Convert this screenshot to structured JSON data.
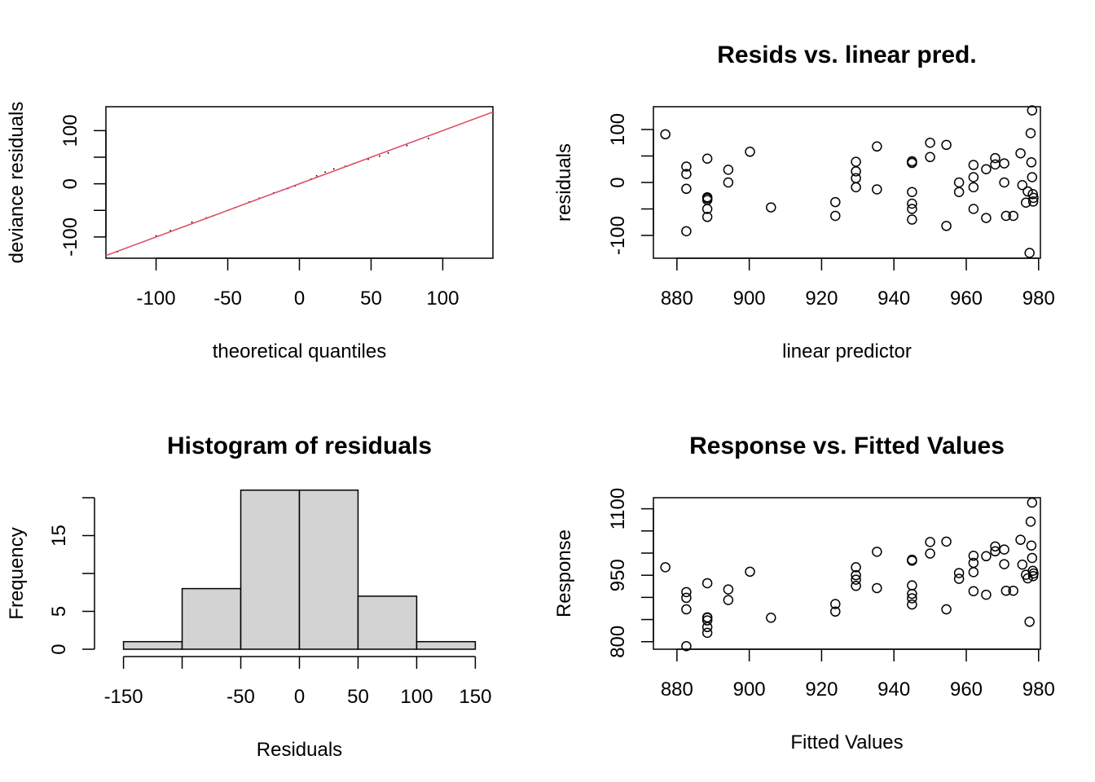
{
  "colors": {
    "reference_line": "#DF536B",
    "hist_fill": "#D3D3D3",
    "ink": "#000000"
  },
  "chart_data": [
    {
      "type": "line",
      "title": "",
      "xlabel": "theoretical quantiles",
      "ylabel": "deviance residuals",
      "xlim": [
        -135,
        135
      ],
      "ylim": [
        -140,
        145
      ],
      "xticks": [
        -100,
        -50,
        0,
        50,
        100
      ],
      "xtick_labels": [
        "-100",
        "-50",
        "0",
        "50",
        "100"
      ],
      "yticks": [
        -100,
        0,
        100
      ],
      "ytick_labels": [
        "-100",
        "0",
        "100"
      ],
      "ytick_marks": [
        -100,
        -50,
        0,
        50,
        100
      ],
      "reference_line": {
        "x": [
          -135,
          135
        ],
        "y": [
          -135,
          135
        ]
      },
      "series": [
        {
          "x": [
            -127,
            -100,
            -90,
            -75,
            -65,
            -60,
            -50,
            -45,
            -35,
            -28,
            -18,
            -12,
            -8,
            -3,
            2,
            8,
            12,
            18,
            24,
            32,
            38,
            48,
            56,
            62,
            75,
            90
          ],
          "y": [
            -128,
            -98,
            -88,
            -72,
            -64,
            -60,
            -50,
            -45,
            -34,
            -27,
            -17,
            -12,
            -9,
            -4,
            2,
            9,
            15,
            22,
            28,
            33,
            38,
            46,
            52,
            58,
            72,
            85
          ]
        }
      ]
    },
    {
      "type": "scatter",
      "title": "Resids vs. linear pred.",
      "xlabel": "linear predictor",
      "ylabel": "residuals",
      "xlim": [
        873.5,
        980.5
      ],
      "ylim": [
        -143,
        143
      ],
      "xticks": [
        880,
        900,
        920,
        940,
        960,
        980
      ],
      "xtick_labels": [
        "880",
        "900",
        "920",
        "940",
        "960",
        "980"
      ],
      "yticks": [
        -100,
        0,
        100
      ],
      "ytick_labels": [
        "-100",
        "0",
        "100"
      ],
      "ytick_marks": [
        -100,
        -50,
        0,
        50,
        100
      ],
      "x": [
        876.8,
        882.6,
        882.6,
        882.6,
        882.6,
        888.4,
        888.4,
        888.4,
        888.4,
        888.4,
        888.4,
        894.2,
        894.2,
        900.2,
        906.0,
        923.8,
        923.8,
        929.5,
        929.5,
        929.5,
        929.5,
        935.3,
        935.3,
        945.0,
        945.0,
        945.0,
        945.0,
        945.0,
        945.0,
        945.0,
        950.0,
        950.0,
        954.5,
        954.5,
        958.0,
        958.0,
        962.0,
        962.0,
        962.0,
        962.0,
        965.5,
        965.5,
        968.0,
        968.0,
        970.5,
        970.5,
        971.0,
        973.0,
        975.0,
        975.5,
        976.5,
        977.0,
        977.5,
        977.8,
        978.0,
        978.2,
        978.2,
        978.4,
        978.5,
        978.6
      ],
      "y": [
        91,
        30,
        16,
        -12,
        -92,
        45,
        -28,
        -33,
        -50,
        -65,
        -30,
        24,
        0,
        58,
        -47,
        -37,
        -63,
        39,
        21,
        8,
        -9,
        68,
        -13,
        40,
        37,
        -18,
        -40,
        -50,
        -70,
        37,
        75,
        48,
        71,
        -82,
        0,
        -18,
        33,
        10,
        -9,
        -50,
        25,
        -67,
        46,
        34,
        36,
        0,
        -63,
        -63,
        55,
        -5,
        -38,
        -17,
        -133,
        93,
        38,
        10,
        136,
        -22,
        -36,
        -29
      ]
    },
    {
      "type": "bar",
      "title": "Histogram of residuals",
      "xlabel": "Residuals",
      "ylabel": "Frequency",
      "xlim": [
        -165,
        165
      ],
      "ylim": [
        0,
        20
      ],
      "bin_edges": [
        -150,
        -100,
        -50,
        0,
        50,
        100,
        150
      ],
      "values": [
        1,
        8,
        21,
        21,
        7,
        1
      ],
      "xticks": [
        -150,
        -50,
        0,
        50,
        100,
        150
      ],
      "xtick_labels": [
        "-150",
        "-50",
        "0",
        "50",
        "100",
        "150"
      ],
      "xtick_marks": [
        -150,
        -100,
        -50,
        0,
        50,
        100,
        150
      ],
      "yticks": [
        0,
        5,
        15
      ],
      "ytick_labels": [
        "0",
        "5",
        "15"
      ],
      "ytick_marks": [
        0,
        5,
        10,
        15,
        20
      ]
    },
    {
      "type": "scatter",
      "title": "Response vs. Fitted Values",
      "xlabel": "Fitted Values",
      "ylabel": "Response",
      "xlim": [
        873.5,
        980.5
      ],
      "ylim": [
        783,
        1125
      ],
      "xticks": [
        880,
        900,
        920,
        940,
        960,
        980
      ],
      "xtick_labels": [
        "880",
        "900",
        "920",
        "940",
        "960",
        "980"
      ],
      "yticks": [
        800,
        950,
        1100
      ],
      "ytick_labels": [
        "800",
        "950",
        "1100"
      ],
      "ytick_marks": [
        800,
        850,
        900,
        950,
        1000,
        1050,
        1100
      ],
      "x": [
        876.8,
        882.6,
        882.6,
        882.6,
        882.6,
        888.4,
        888.4,
        888.4,
        888.4,
        888.4,
        888.4,
        894.2,
        894.2,
        900.2,
        906.0,
        923.8,
        923.8,
        929.5,
        929.5,
        929.5,
        929.5,
        935.3,
        935.3,
        945.0,
        945.0,
        945.0,
        945.0,
        945.0,
        945.0,
        945.0,
        950.0,
        950.0,
        954.5,
        954.5,
        958.0,
        958.0,
        962.0,
        962.0,
        962.0,
        962.0,
        965.5,
        965.5,
        968.0,
        968.0,
        970.5,
        970.5,
        971.0,
        973.0,
        975.0,
        975.5,
        976.5,
        977.0,
        977.5,
        977.8,
        978.0,
        978.2,
        978.2,
        978.4,
        978.5,
        978.6
      ],
      "y": [
        968,
        912,
        899,
        873,
        790,
        932,
        854,
        848,
        833,
        820,
        855,
        918,
        894,
        958,
        854,
        885,
        868,
        968,
        950,
        940,
        926,
        1003,
        921,
        985,
        983,
        927,
        908,
        898,
        884,
        983,
        1025,
        999,
        1026,
        873,
        955,
        942,
        994,
        978,
        957,
        914,
        993,
        906,
        1015,
        1004,
        1008,
        975,
        915,
        915,
        1030,
        974,
        951,
        943,
        845,
        1071,
        1017,
        989,
        1114,
        960,
        948,
        954
      ]
    }
  ]
}
